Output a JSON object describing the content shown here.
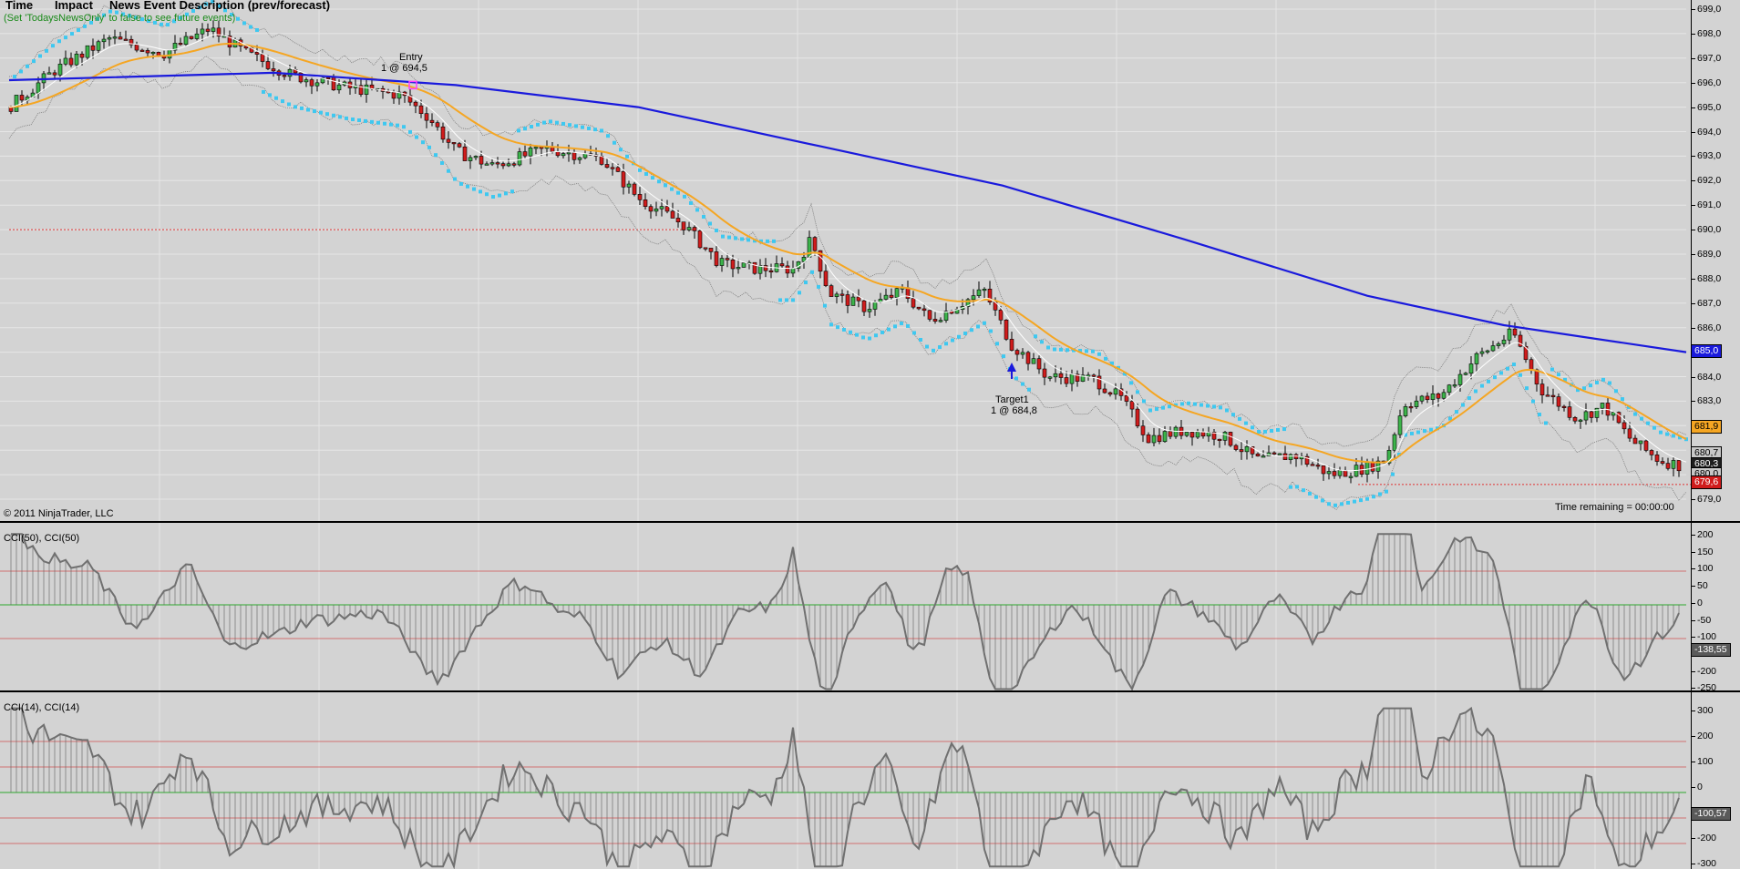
{
  "header": {
    "col_time": "Time",
    "col_impact": "Impact",
    "col_desc": "News Event Description (prev/forecast)",
    "note": "(Set 'TodaysNewsOnly' to false to see future events)"
  },
  "copyright": "© 2011 NinjaTrader, LLC",
  "time_remaining": "Time remaining = 00:00:00",
  "markers": {
    "entry_title": "Entry",
    "entry_detail": "1 @ 694,5",
    "target_title": "Target1",
    "target_detail": "1 @ 684,8"
  },
  "colors": {
    "background": "#d3d3d3",
    "up_candle": "#3cb44b",
    "down_candle": "#d01c1c",
    "sma_long": "#1a1adc",
    "ema_mid": "#f5a623",
    "parabolic_sar": "#3ec8f0",
    "bollinger": "#7a7a7a",
    "cci_line": "#707070",
    "zero_line": "#2ea82e",
    "level_line": "#d05050"
  },
  "price_panel": {
    "y_ticks": [
      "699,0",
      "698,0",
      "697,0",
      "696,0",
      "695,0",
      "694,0",
      "693,0",
      "692,0",
      "691,0",
      "690,0",
      "689,0",
      "688,0",
      "687,0",
      "686,0",
      "685,0",
      "684,0",
      "683,0",
      "682,0",
      "681,0",
      "680,0",
      "679,0"
    ],
    "tags": {
      "sma": "685,0",
      "ema": "681,9",
      "last_upper": "680,7",
      "last": "680,3",
      "last_lower": "680,0",
      "low": "679,6"
    }
  },
  "cci50_panel": {
    "title": "CCI(50), CCI(50)",
    "y_ticks": [
      "200",
      "150",
      "100",
      "50",
      "0",
      "-50",
      "-100",
      "-150",
      "-200",
      "-250"
    ],
    "value_tag": "-138,55"
  },
  "cci14_panel": {
    "title": "CCI(14), CCI(14)",
    "y_ticks": [
      "300",
      "200",
      "100",
      "0",
      "-100",
      "-200",
      "-300"
    ],
    "value_tag": "-100,57"
  }
}
